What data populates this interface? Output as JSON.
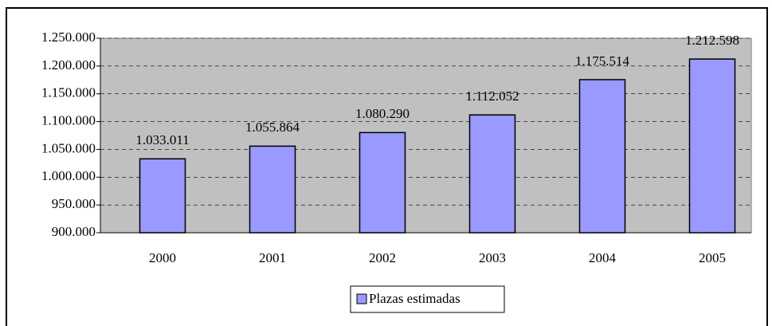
{
  "chart_data": {
    "type": "bar",
    "categories": [
      "2000",
      "2001",
      "2002",
      "2003",
      "2004",
      "2005"
    ],
    "series": [
      {
        "name": "Plazas estimadas",
        "color": "#9999ff",
        "values": [
          1033011,
          1055864,
          1080290,
          1112052,
          1175514,
          1212598
        ],
        "value_labels": [
          "1.033.011",
          "1.055.864",
          "1.080.290",
          "1.112.052",
          "1.175.514",
          "1.212.598"
        ]
      }
    ],
    "ylim": [
      900000,
      1250000
    ],
    "yticks": [
      {
        "value": 900000,
        "label": "900.000"
      },
      {
        "value": 950000,
        "label": "950.000"
      },
      {
        "value": 1000000,
        "label": "1.000.000"
      },
      {
        "value": 1050000,
        "label": "1.050.000"
      },
      {
        "value": 1100000,
        "label": "1.100.000"
      },
      {
        "value": 1150000,
        "label": "1.150.000"
      },
      {
        "value": 1200000,
        "label": "1.200.000"
      },
      {
        "value": 1250000,
        "label": "1.250.000"
      }
    ],
    "grid": true,
    "plot_background": "#c0c0c0",
    "legend": "bottom"
  }
}
